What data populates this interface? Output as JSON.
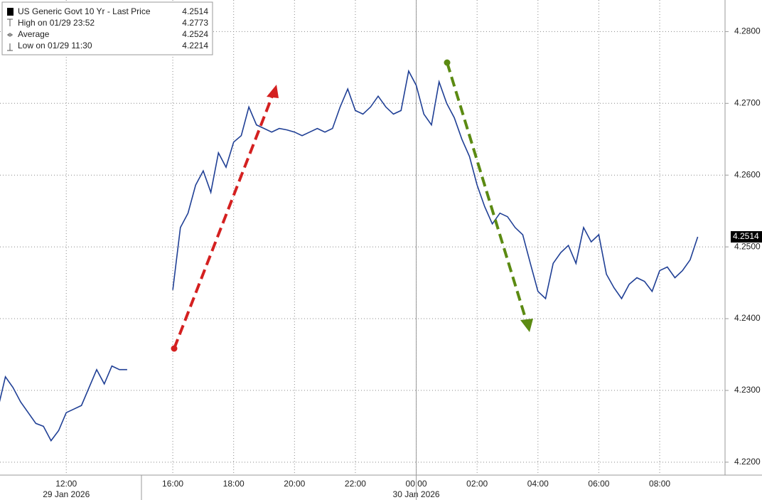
{
  "chart_data": {
    "type": "line",
    "legend": [
      {
        "label": "US Generic Govt 10 Yr - Last Price",
        "value": 4.2514
      },
      {
        "label": "High on 01/29 23:52",
        "value": 4.2773
      },
      {
        "label": "Average",
        "value": 4.2524
      },
      {
        "label": "Low on 01/29 11:30",
        "value": 4.2214
      }
    ],
    "categories": [
      null,
      null,
      null,
      null,
      null,
      null,
      null,
      null,
      null,
      "12:00",
      null,
      null,
      null,
      null,
      null,
      null,
      null,
      null,
      null,
      null,
      null,
      null,
      null,
      "16:00",
      null,
      null,
      null,
      null,
      null,
      null,
      null,
      "18:00",
      null,
      null,
      null,
      null,
      null,
      null,
      null,
      "20:00",
      null,
      null,
      null,
      null,
      null,
      null,
      null,
      "22:00",
      null,
      null,
      null,
      null,
      null,
      null,
      null,
      "00:00",
      null,
      null,
      null,
      null,
      null,
      null,
      null,
      "02:00",
      null,
      null,
      null,
      null,
      null,
      null,
      null,
      "04:00",
      null,
      null,
      null,
      null,
      null,
      null,
      null,
      "06:00",
      null,
      null,
      null,
      null,
      null,
      null,
      null,
      "08:00",
      null,
      null,
      null,
      null,
      null
    ],
    "dates": [
      null,
      null,
      null,
      null,
      null,
      null,
      null,
      null,
      null,
      "29 Jan 2026",
      null,
      null,
      null,
      null,
      null,
      null,
      null,
      null,
      null,
      null,
      null,
      null,
      null,
      null,
      null,
      null,
      null,
      null,
      null,
      null,
      null,
      null,
      null,
      null,
      null,
      null,
      null,
      null,
      null,
      null,
      null,
      null,
      null,
      null,
      null,
      null,
      null,
      null,
      null,
      null,
      null,
      null,
      null,
      null,
      null,
      "30 Jan 2026",
      null,
      null,
      null,
      null,
      null,
      null,
      null,
      null,
      null,
      null,
      null,
      null,
      null,
      null,
      null,
      null,
      null,
      null,
      null,
      null,
      null,
      null,
      null,
      null,
      null,
      null,
      null,
      null,
      null,
      null,
      null,
      null,
      null,
      null,
      null,
      null,
      null
    ],
    "series": [
      {
        "name": "US Generic Govt 10 Yr - Last Price",
        "color": "#1f3f95",
        "values": [
          4.2274,
          4.2319,
          4.2304,
          4.2284,
          4.2269,
          4.2254,
          4.225,
          4.223,
          4.2244,
          4.2269,
          4.2274,
          4.2279,
          4.2304,
          4.2329,
          4.2309,
          4.2334,
          4.2329,
          4.2329,
          null,
          null,
          null,
          null,
          null,
          4.244,
          4.2527,
          4.2547,
          4.2586,
          4.2606,
          4.2576,
          4.2631,
          4.2611,
          4.2646,
          4.2655,
          4.2695,
          4.267,
          4.2665,
          4.266,
          4.2665,
          4.2663,
          4.266,
          4.2655,
          4.266,
          4.2665,
          4.266,
          4.2665,
          4.2695,
          4.272,
          4.269,
          4.2685,
          4.2695,
          4.271,
          4.2695,
          4.2685,
          4.269,
          4.2745,
          4.2725,
          4.2685,
          4.267,
          4.273,
          4.27,
          4.268,
          4.265,
          4.2626,
          4.2586,
          4.2556,
          4.2532,
          4.2547,
          4.2542,
          4.2527,
          4.2517,
          4.2477,
          4.2438,
          4.2428,
          4.2477,
          4.2492,
          4.2502,
          4.2477,
          4.2527,
          4.2507,
          4.2517,
          4.2462,
          4.2443,
          4.2428,
          4.2448,
          4.2457,
          4.2452,
          4.2438,
          4.2467,
          4.2472,
          4.2457,
          4.2467,
          4.2482,
          4.2514
        ]
      }
    ],
    "ylim": [
      4.2182,
      4.2844
    ],
    "yticks": [
      {
        "value": 4.22,
        "label": "4.2200"
      },
      {
        "value": 4.23,
        "label": "4.2300"
      },
      {
        "value": 4.24,
        "label": "4.2400"
      },
      {
        "value": 4.25,
        "label": "4.2500"
      },
      {
        "value": 4.26,
        "label": "4.2600"
      },
      {
        "value": 4.27,
        "label": "4.2700"
      },
      {
        "value": 4.28,
        "label": "4.2800"
      }
    ],
    "grid": true
  }
}
